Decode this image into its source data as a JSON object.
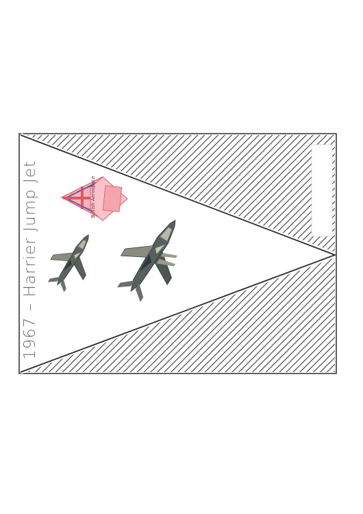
{
  "pennant": {
    "caption": "1967 – Harrier Jump Jet",
    "badge_text": "British Aerospace"
  },
  "colors": {
    "outline": "#2b2b2b",
    "hatch": "#3a3a3a",
    "caption": "#6e6e6e",
    "flag_red": "#e0566a",
    "flag_blue": "#4a5fa8",
    "badge_pink": "#f4a5ad",
    "jet_dark": "#2f3a3c",
    "jet_light": "#b8b7a6"
  },
  "icons": [
    "union-jack-flag-drawing",
    "british-aerospace-badge-drawing",
    "harrier-jet-small-image",
    "harrier-jet-large-image"
  ]
}
